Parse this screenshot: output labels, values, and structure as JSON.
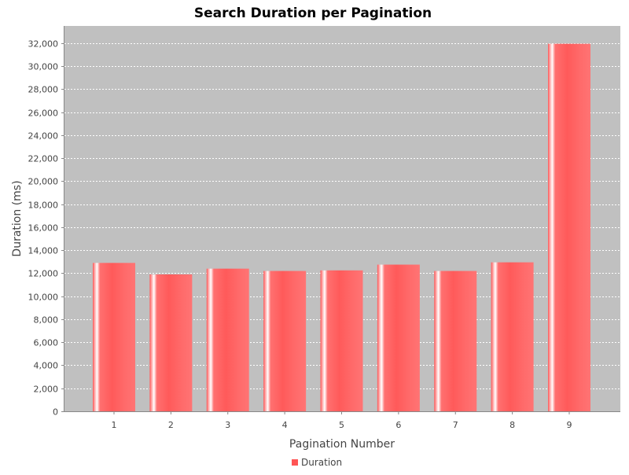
{
  "chart_data": {
    "type": "bar",
    "title": "Search Duration per Pagination",
    "xlabel": "Pagination Number",
    "ylabel": "Duration (ms)",
    "categories": [
      "1",
      "2",
      "3",
      "4",
      "5",
      "6",
      "7",
      "8",
      "9"
    ],
    "series": [
      {
        "name": "Duration",
        "values": [
          12900,
          11900,
          12400,
          12200,
          12250,
          12750,
          12200,
          12950,
          31950
        ]
      }
    ],
    "ylim": [
      0,
      33500
    ],
    "yticks": [
      0,
      2000,
      4000,
      6000,
      8000,
      10000,
      12000,
      14000,
      16000,
      18000,
      20000,
      22000,
      24000,
      26000,
      28000,
      30000,
      32000
    ],
    "grid": true,
    "legend_position": "bottom",
    "colors": {
      "bar": "#ff5555",
      "bar_highlight": "#ffffff",
      "plot_background": "#c0c0c0",
      "gridline": "#ffffff",
      "axis_text": "#444444",
      "title_text": "#000000"
    }
  }
}
